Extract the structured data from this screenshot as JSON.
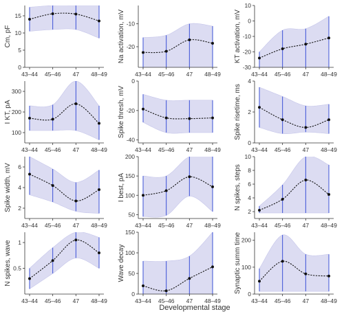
{
  "figure": {
    "xlabel": "Developmental stage"
  },
  "style": {
    "band_color": "#dcdcf2",
    "band_edge_color": "#c6c6ea",
    "line_color": "#111111",
    "errorbar_color": "#3a4fd6",
    "axis_color": "#333333"
  },
  "chart_data": [
    {
      "type": "line",
      "ylabel": "Cm, pF",
      "categories": [
        "43–44",
        "45–46",
        "47",
        "48–49"
      ],
      "values": [
        14,
        15.6,
        15.5,
        13.5
      ],
      "lower": [
        10.5,
        11.0,
        11.0,
        8.5
      ],
      "upper": [
        17.5,
        18.3,
        18.3,
        18.0
      ],
      "ylim": [
        0,
        18
      ],
      "yticks": [
        0,
        5,
        10,
        15
      ]
    },
    {
      "type": "line",
      "ylabel": "Na activation, mV",
      "categories": [
        "43–44",
        "45–46",
        "47",
        "48–49"
      ],
      "values": [
        -22.5,
        -22,
        -17,
        -18.5
      ],
      "lower": [
        -29,
        -29,
        -29,
        -29
      ],
      "upper": [
        -16,
        -15,
        -10,
        -11
      ],
      "ylim": [
        -29,
        -2
      ],
      "yticks": [
        -20,
        -10
      ]
    },
    {
      "type": "line",
      "ylabel": "KT activation, mV",
      "categories": [
        "43–44",
        "45–46",
        "47",
        "48–49"
      ],
      "values": [
        -24,
        -18,
        -15,
        -11
      ],
      "lower": [
        -30,
        -30,
        -30,
        -30
      ],
      "upper": [
        -20,
        -6,
        -5,
        3
      ],
      "ylim": [
        -30,
        10
      ],
      "yticks": [
        -30,
        -20,
        -10,
        0,
        10
      ]
    },
    {
      "type": "line",
      "ylabel": "I KT, pA",
      "categories": [
        "43–44",
        "45–46",
        "47",
        "48–49"
      ],
      "values": [
        170,
        165,
        240,
        145
      ],
      "lower": [
        110,
        110,
        110,
        65
      ],
      "upper": [
        230,
        235,
        360,
        230
      ],
      "ylim": [
        50,
        350
      ],
      "yticks": [
        100,
        200,
        300
      ]
    },
    {
      "type": "line",
      "ylabel": "Spike thresh, mV",
      "categories": [
        "43–44",
        "45–46",
        "47",
        "48–49"
      ],
      "values": [
        -19,
        -25,
        -25.5,
        -25
      ],
      "lower": [
        -28,
        -35,
        -35,
        -35
      ],
      "upper": [
        -9,
        -13,
        -13,
        -13
      ],
      "ylim": [
        -42,
        0
      ],
      "yticks": [
        -40,
        -20,
        0
      ]
    },
    {
      "type": "line",
      "ylabel": "Spike risetime, ms",
      "categories": [
        "43–44",
        "45–46",
        "47",
        "48–49"
      ],
      "values": [
        2.3,
        1.5,
        1.0,
        1.5
      ],
      "lower": [
        1.0,
        0.6,
        0.7,
        0.6
      ],
      "upper": [
        3.6,
        3.0,
        2.4,
        2.5
      ],
      "ylim": [
        0,
        4
      ],
      "yticks": [
        0,
        2,
        4
      ]
    },
    {
      "type": "line",
      "ylabel": "Spike width, mV",
      "categories": [
        "43–44",
        "45–46",
        "47",
        "48–49"
      ],
      "values": [
        5.3,
        4.2,
        2.7,
        3.8
      ],
      "lower": [
        3.3,
        2.6,
        1.7,
        1.5
      ],
      "upper": [
        7.2,
        5.8,
        4.5,
        5.7
      ],
      "ylim": [
        1,
        7
      ],
      "yticks": [
        2,
        4,
        6
      ]
    },
    {
      "type": "line",
      "ylabel": "I best, pA",
      "categories": [
        "43–44",
        "45–46",
        "47",
        "48–49"
      ],
      "values": [
        100,
        112,
        148,
        122
      ],
      "lower": [
        45,
        48,
        98,
        58
      ],
      "upper": [
        150,
        150,
        200,
        200
      ],
      "ylim": [
        40,
        200
      ],
      "yticks": [
        50,
        100,
        150,
        200
      ]
    },
    {
      "type": "line",
      "ylabel": "N spikes, steps",
      "categories": [
        "43–44",
        "45–46",
        "47",
        "48–49"
      ],
      "values": [
        2.2,
        3.8,
        6.6,
        4.5
      ],
      "lower": [
        1.8,
        1.8,
        1.8,
        1.8
      ],
      "upper": [
        2.8,
        5.9,
        10.2,
        8.8
      ],
      "ylim": [
        1,
        10
      ],
      "yticks": [
        2,
        4,
        6,
        8,
        10
      ]
    },
    {
      "type": "line",
      "ylabel": "N spikes, wave",
      "categories": [
        "43–44",
        "45–46",
        "47",
        "48–49"
      ],
      "values": [
        0.3,
        0.65,
        1.05,
        0.8
      ],
      "lower": [
        0.1,
        0.4,
        0.7,
        0.5
      ],
      "upper": [
        0.5,
        0.9,
        1.35,
        1.1
      ],
      "ylim": [
        0,
        1.2
      ],
      "yticks": [
        0.5,
        1
      ]
    },
    {
      "type": "line",
      "ylabel": "Wave decay",
      "categories": [
        "43–44",
        "45–46",
        "47",
        "48–49"
      ],
      "values": [
        20,
        8,
        38,
        66
      ],
      "lower": [
        0,
        0,
        0,
        0
      ],
      "upper": [
        80,
        80,
        92,
        150
      ],
      "ylim": [
        0,
        150
      ],
      "yticks": [
        0,
        50,
        100,
        150
      ]
    },
    {
      "type": "line",
      "ylabel": "Synaptic summ time",
      "categories": [
        "43–44",
        "45–46",
        "47",
        "48–49"
      ],
      "values": [
        48,
        122,
        75,
        67
      ],
      "lower": [
        10,
        10,
        10,
        10
      ],
      "upper": [
        95,
        220,
        148,
        148
      ],
      "ylim": [
        0,
        230
      ],
      "yticks": [
        0,
        100,
        200
      ]
    }
  ]
}
